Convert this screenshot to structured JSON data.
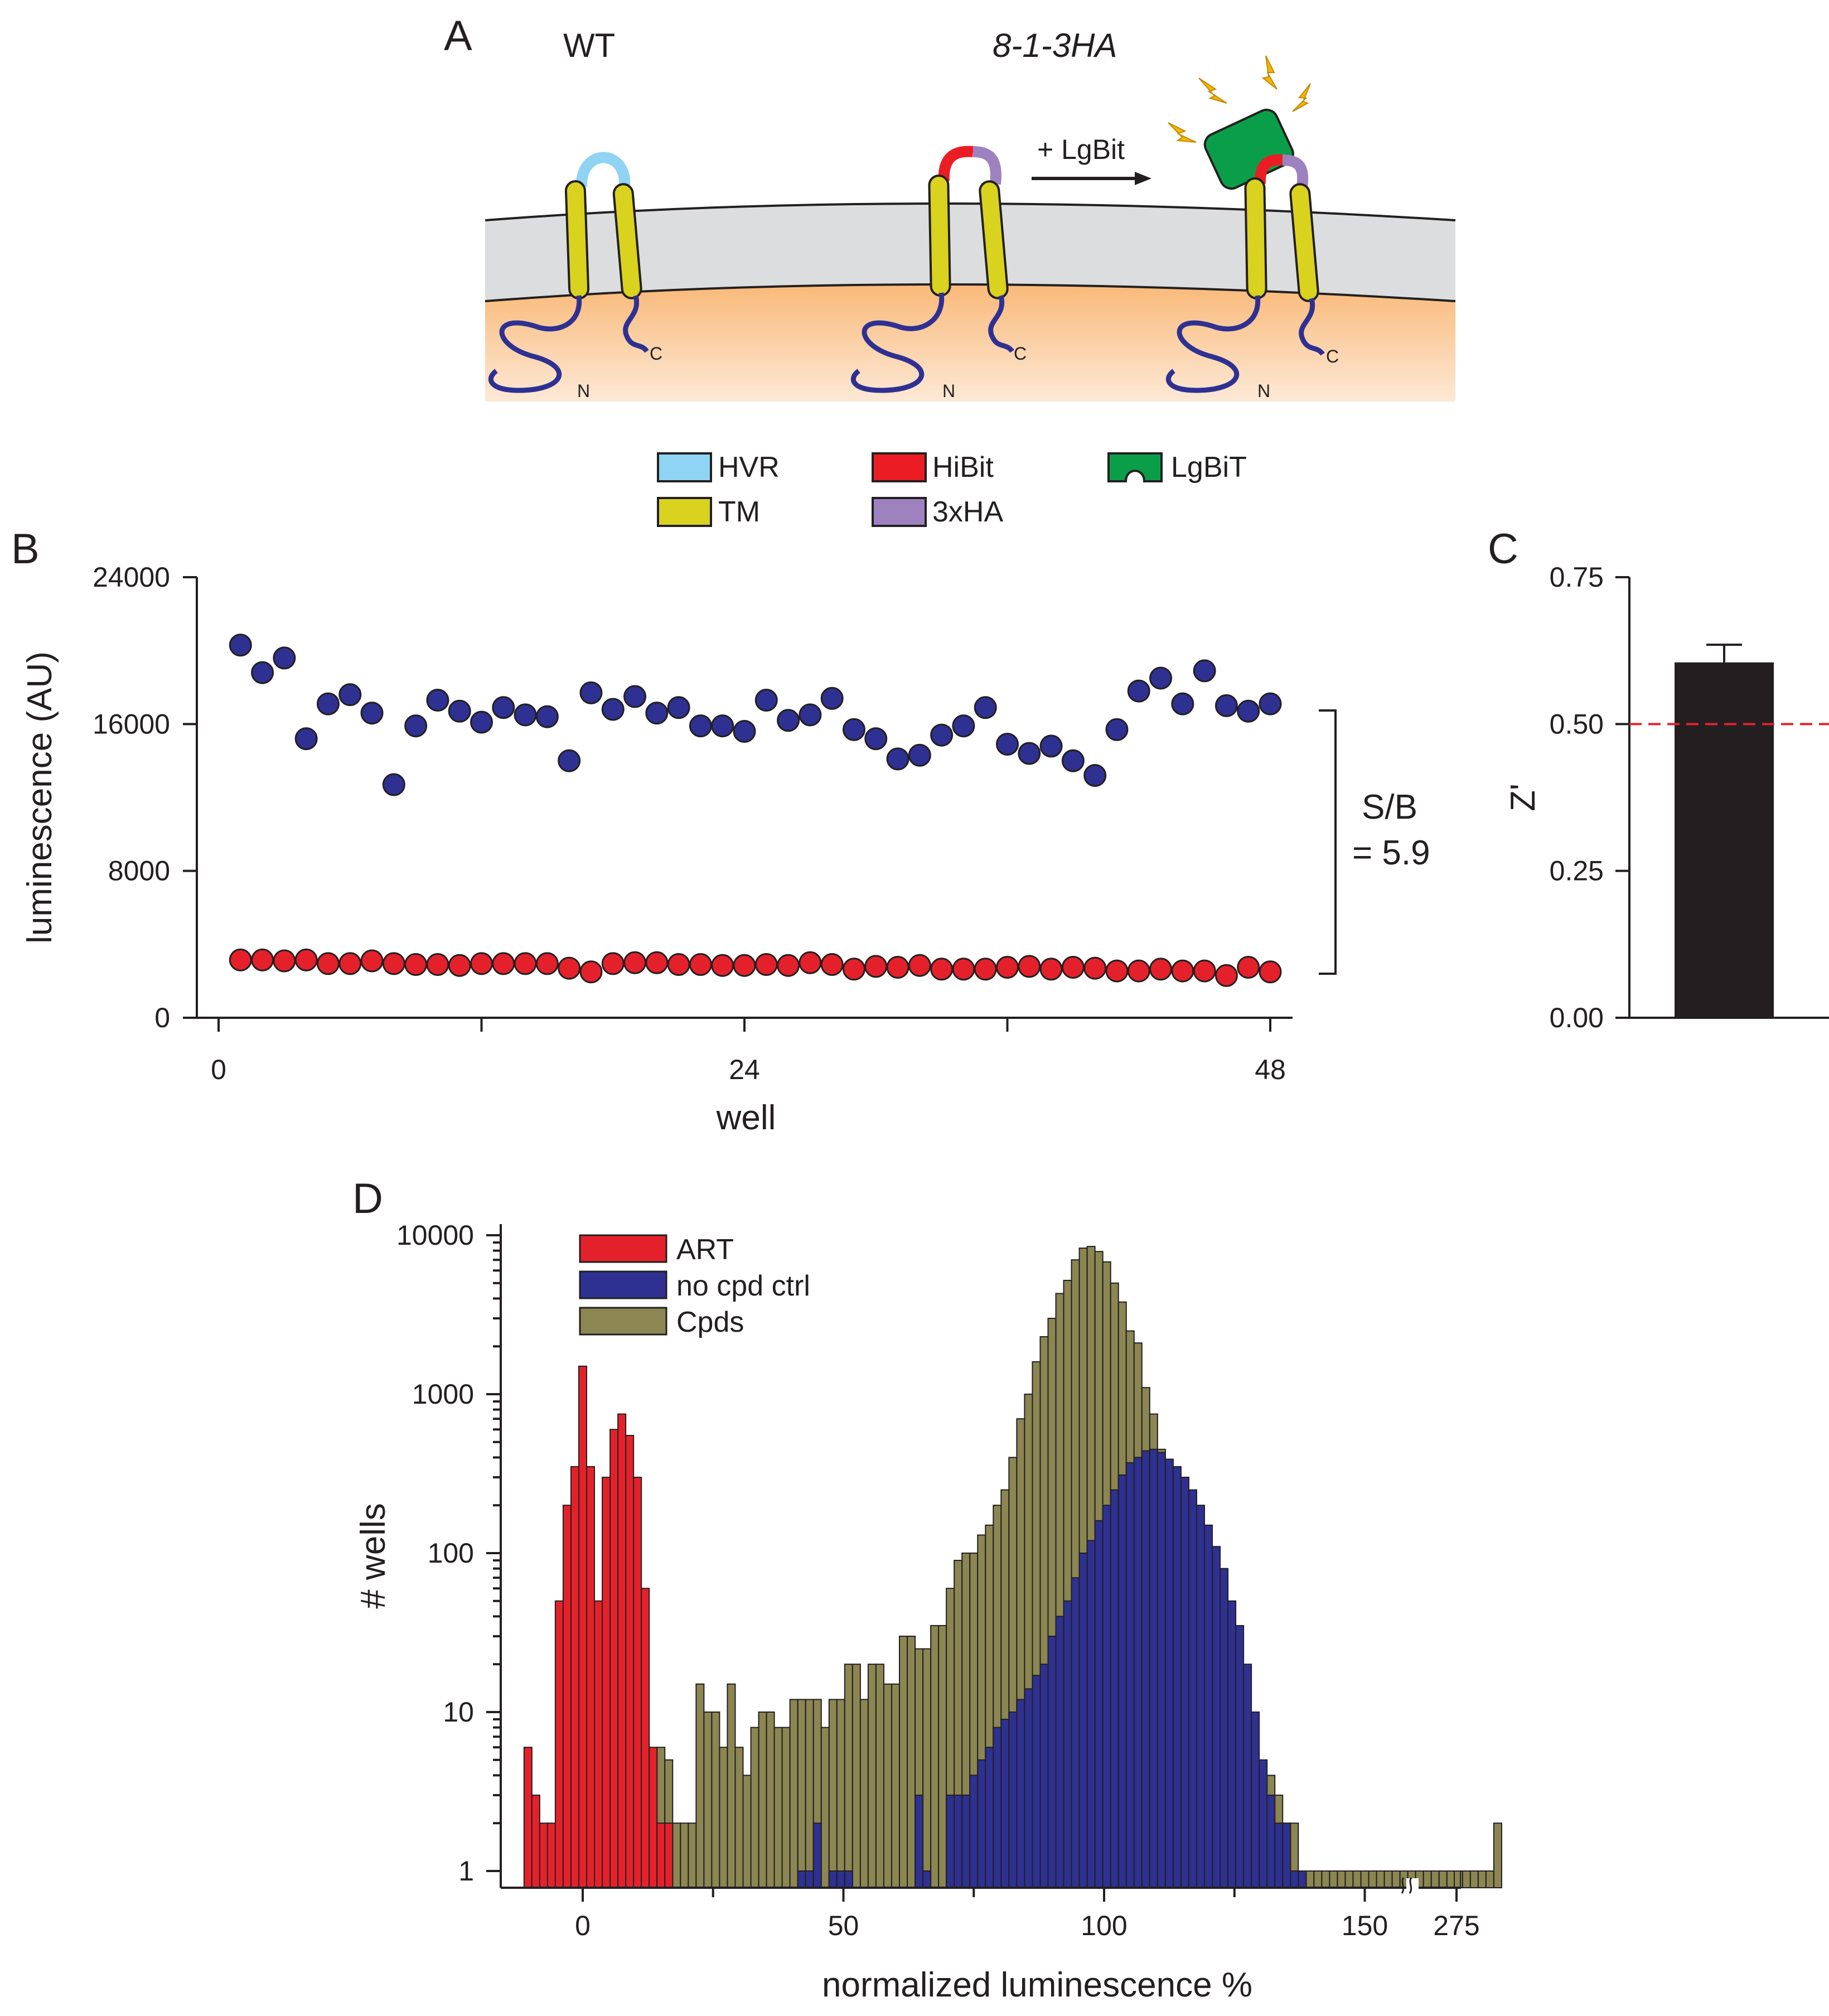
{
  "panels": {
    "a": "A",
    "b": "B",
    "c": "C",
    "d": "D"
  },
  "schematic": {
    "wt_label": "WT",
    "mutant_label": "8-1-3HA",
    "arrow_label": "+ LgBit",
    "c_term": "C",
    "n_term": "N",
    "legend": [
      {
        "label": "HVR",
        "color": "#8fd4f2"
      },
      {
        "label": "TM",
        "color": "#d9d21f"
      },
      {
        "label": "HiBit",
        "color": "#ec1c24"
      },
      {
        "label": "3xHA",
        "color": "#9d82bf"
      },
      {
        "label": "LgBiT",
        "color": "#0b9e49"
      }
    ]
  },
  "colors": {
    "blue_dots": "#2e3192",
    "red_dots": "#e4212b",
    "bar": "#231f20",
    "threshold": "#e4212b",
    "hist_red": "#e4212b",
    "hist_blue": "#2e3192",
    "hist_olive": "#8b8652"
  },
  "sb_label_1": "S/B",
  "sb_label_2": "= 5.9",
  "chart_data": [
    {
      "id": "B",
      "type": "scatter",
      "xlabel": "well",
      "ylabel": "luminescence (AU)",
      "xlim": [
        0,
        48
      ],
      "ylim": [
        0,
        24000
      ],
      "xticks": [
        0,
        24,
        48
      ],
      "yticks": [
        0,
        8000,
        16000,
        24000
      ],
      "series": [
        {
          "name": "signal",
          "x": [
            1,
            2,
            3,
            4,
            5,
            6,
            7,
            8,
            9,
            10,
            11,
            12,
            13,
            14,
            15,
            16,
            17,
            18,
            19,
            20,
            21,
            22,
            23,
            24,
            25,
            26,
            27,
            28,
            29,
            30,
            31,
            32,
            33,
            34,
            35,
            36,
            37,
            38,
            39,
            40,
            41,
            42,
            43,
            44,
            45,
            46,
            47,
            48
          ],
          "values": [
            20300,
            18800,
            19600,
            15200,
            17100,
            17600,
            16600,
            12700,
            15900,
            17300,
            16700,
            16100,
            16900,
            16500,
            16400,
            14000,
            17700,
            16800,
            17500,
            16600,
            16900,
            15900,
            15900,
            15600,
            17300,
            16200,
            16500,
            17400,
            15700,
            15200,
            14100,
            14300,
            15400,
            15900,
            16900,
            14900,
            14400,
            14800,
            14000,
            13200,
            15700,
            17800,
            18500,
            17100,
            18900,
            17000,
            16700,
            17100
          ]
        },
        {
          "name": "background",
          "x": [
            1,
            2,
            3,
            4,
            5,
            6,
            7,
            8,
            9,
            10,
            11,
            12,
            13,
            14,
            15,
            16,
            17,
            18,
            19,
            20,
            21,
            22,
            23,
            24,
            25,
            26,
            27,
            28,
            29,
            30,
            31,
            32,
            33,
            34,
            35,
            36,
            37,
            38,
            39,
            40,
            41,
            42,
            43,
            44,
            45,
            46,
            47,
            48
          ],
          "values": [
            3150,
            3150,
            3100,
            3150,
            2950,
            2950,
            3100,
            2950,
            2900,
            2900,
            2850,
            2950,
            2950,
            2950,
            2950,
            2700,
            2500,
            2950,
            3000,
            3000,
            2900,
            2900,
            2850,
            2850,
            2900,
            2850,
            3000,
            2900,
            2650,
            2800,
            2750,
            2850,
            2650,
            2650,
            2650,
            2750,
            2800,
            2650,
            2750,
            2700,
            2550,
            2550,
            2650,
            2550,
            2550,
            2300,
            2750,
            2500
          ]
        }
      ]
    },
    {
      "id": "C",
      "type": "bar",
      "ylabel": "Z'",
      "ylim": [
        0,
        0.75
      ],
      "yticks": [
        "0.00",
        "0.25",
        "0.50",
        "0.75"
      ],
      "values": [
        0.605
      ],
      "error": [
        0.03
      ],
      "threshold": 0.5
    },
    {
      "id": "D",
      "type": "bar",
      "xlabel": "normalized luminescence %",
      "ylabel": "# wells",
      "yscale": "log",
      "ylim": [
        1,
        10000
      ],
      "xticks": [
        "0",
        "50",
        "100",
        "150",
        "275"
      ],
      "yticks": [
        "1",
        "10",
        "100",
        "1000",
        "10000"
      ],
      "bin_width": 1.5,
      "legend": [
        "ART",
        "no cpd ctrl",
        "Cpds"
      ],
      "series": [
        {
          "name": "ART",
          "start": -11.25,
          "values": [
            6,
            3,
            2,
            2,
            50,
            200,
            350,
            1500,
            350,
            50,
            300,
            600,
            750,
            550,
            300,
            60,
            6,
            2,
            2
          ]
        },
        {
          "name": "Cpds",
          "start": -0.75,
          "values": [
            3,
            0,
            0,
            0,
            2,
            2,
            5,
            5,
            2,
            3,
            6,
            5,
            2,
            2,
            2,
            15,
            10,
            10,
            6,
            15,
            6,
            4,
            8,
            10,
            10,
            8,
            8,
            12,
            12,
            12,
            12,
            8,
            12,
            12,
            20,
            20,
            12,
            20,
            20,
            15,
            15,
            30,
            30,
            25,
            25,
            35,
            35,
            60,
            90,
            100,
            100,
            130,
            150,
            200,
            250,
            400,
            700,
            1000,
            1600,
            2300,
            3000,
            4300,
            5200,
            7000,
            8300,
            8500,
            7900,
            6800,
            5000,
            3800,
            2500,
            2100,
            1100,
            750,
            450,
            250,
            160,
            100,
            60,
            30,
            20,
            10,
            5,
            3,
            3,
            2,
            4,
            3,
            4,
            3,
            2,
            2,
            1,
            1,
            1,
            1,
            1,
            1,
            1,
            1,
            1,
            1,
            1,
            1,
            1,
            1,
            1,
            1,
            1,
            1,
            1,
            1,
            1,
            1,
            1,
            1,
            1,
            2
          ]
        },
        {
          "name": "no cpd ctrl",
          "start": 41.25,
          "values": [
            1,
            1,
            2,
            0,
            1,
            1,
            1,
            0,
            0,
            0,
            0,
            0,
            0,
            0,
            0,
            3,
            1,
            0,
            0,
            3,
            3,
            3,
            4,
            5,
            6,
            8,
            9,
            10,
            12,
            14,
            17,
            20,
            30,
            40,
            50,
            70,
            100,
            120,
            160,
            200,
            250,
            310,
            370,
            400,
            440,
            450,
            430,
            390,
            350,
            300,
            250,
            200,
            150,
            110,
            80,
            50,
            35,
            20,
            10,
            5,
            3,
            2,
            2,
            1,
            1
          ]
        }
      ]
    }
  ]
}
